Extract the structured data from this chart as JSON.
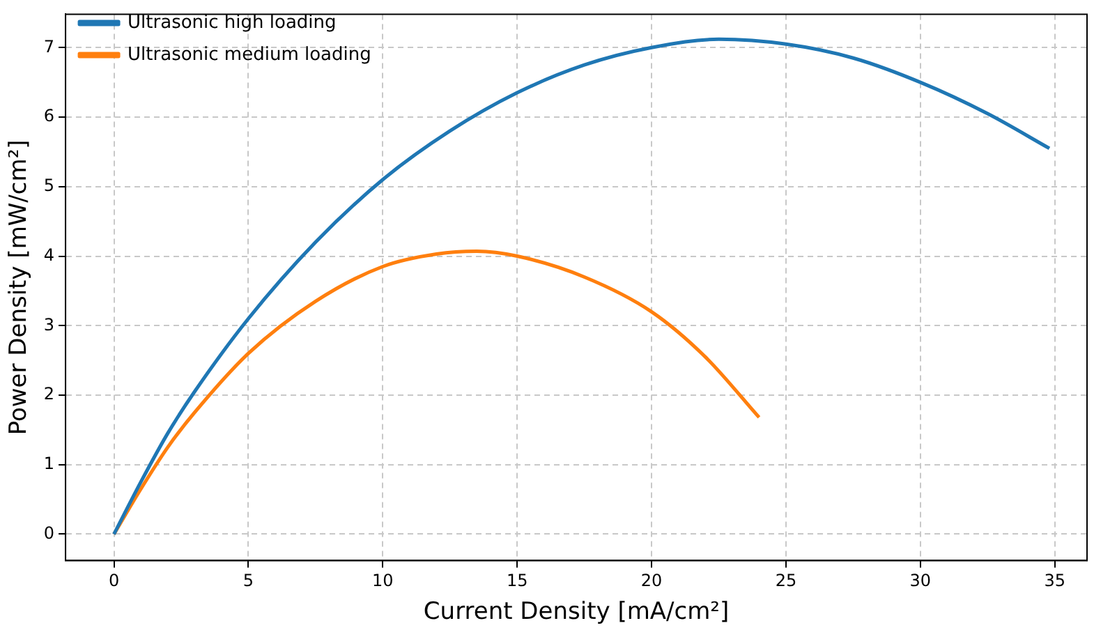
{
  "chart_data": {
    "type": "line",
    "xlabel": "Current Density [mA/cm²]",
    "ylabel": "Power Density [mW/cm²]",
    "xlim": [
      -1.8,
      36.2
    ],
    "ylim": [
      -0.38,
      7.48
    ],
    "xticks": [
      0,
      5,
      10,
      15,
      20,
      25,
      30,
      35
    ],
    "yticks": [
      0,
      1,
      2,
      3,
      4,
      5,
      6,
      7
    ],
    "grid": true,
    "legend": "top left",
    "marker": "none",
    "line_style": "solid",
    "series": [
      {
        "name": "Ultrasonic high loading",
        "color": "#1f77b4",
        "x": [
          0,
          1,
          2,
          3,
          5,
          7.5,
          10,
          12.5,
          15,
          17.5,
          20,
          22.5,
          25,
          27.5,
          30,
          32.5,
          34.8
        ],
        "values": [
          0,
          0.75,
          1.45,
          2.05,
          3.1,
          4.2,
          5.1,
          5.8,
          6.35,
          6.75,
          7.0,
          7.12,
          7.05,
          6.85,
          6.5,
          6.05,
          5.55
        ]
      },
      {
        "name": "Ultrasonic medium loading",
        "color": "#ff7f0e",
        "x": [
          0,
          1,
          2,
          3,
          5,
          7.5,
          10,
          12,
          13.5,
          15,
          17.5,
          20,
          22,
          24
        ],
        "values": [
          0,
          0.65,
          1.25,
          1.75,
          2.6,
          3.35,
          3.85,
          4.03,
          4.07,
          4.0,
          3.7,
          3.2,
          2.55,
          1.68
        ]
      }
    ]
  }
}
